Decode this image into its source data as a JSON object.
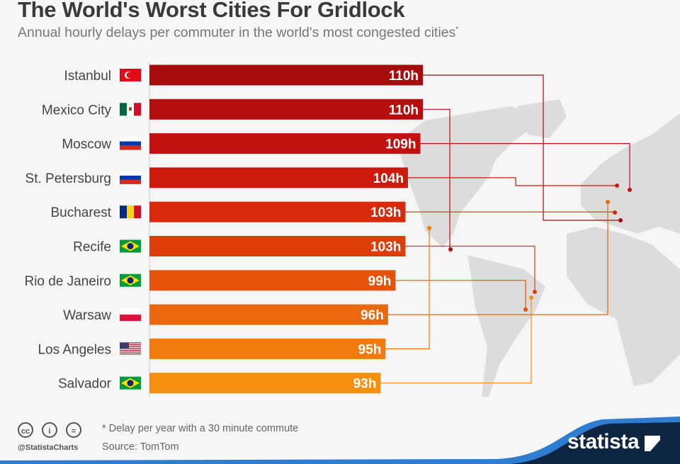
{
  "title": "The World's Worst Cities For Gridlock",
  "subtitle": "Annual hourly delays per commuter in the world's most congested cities",
  "subtitle_mark": "*",
  "chart_data": {
    "type": "bar",
    "orientation": "horizontal",
    "categories": [
      "Istanbul",
      "Mexico City",
      "Moscow",
      "St. Petersburg",
      "Bucharest",
      "Recife",
      "Rio de Janeiro",
      "Warsaw",
      "Los Angeles",
      "Salvador"
    ],
    "values": [
      110,
      110,
      109,
      104,
      103,
      103,
      99,
      96,
      95,
      93
    ],
    "value_suffix": "h",
    "flags": [
      "turkey-flag",
      "mexico-flag",
      "russia-flag",
      "russia-flag",
      "romania-flag",
      "brazil-flag",
      "brazil-flag",
      "poland-flag",
      "usa-flag",
      "brazil-flag"
    ],
    "colors": [
      "#a70b0b",
      "#b50e0e",
      "#c11210",
      "#cd1a0c",
      "#d82909",
      "#df3d08",
      "#e5530a",
      "#eb670b",
      "#f17c0d",
      "#f68f10"
    ],
    "xlim": [
      0,
      110
    ],
    "background": "world map with connector lines to city locations"
  },
  "footer": {
    "note": "* Delay per year with a 30 minute commute",
    "source": "Source: TomTom",
    "handle": "@StatistaCharts",
    "brand": "statista",
    "license_icons": [
      "cc",
      "i",
      "="
    ]
  }
}
